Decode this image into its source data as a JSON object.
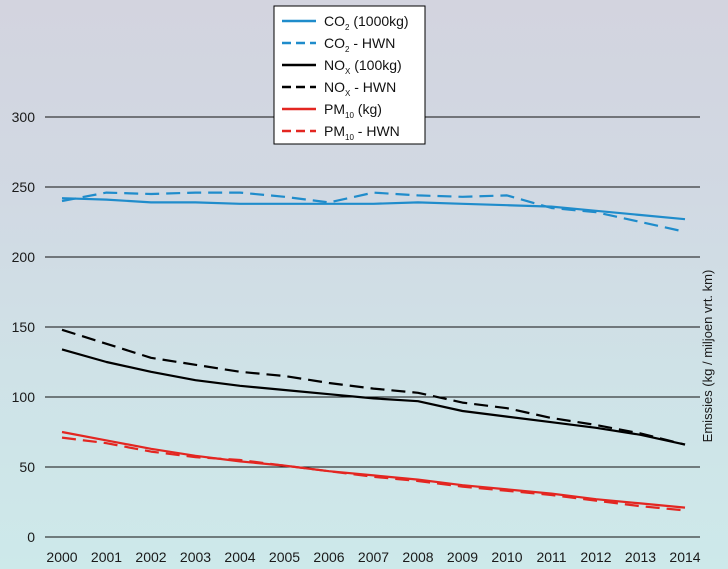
{
  "chart_data": {
    "type": "line",
    "ylabel": "Emissies (kg / miljoen vrt. km)",
    "ylim": [
      0,
      300
    ],
    "yticks": [
      0,
      50,
      100,
      150,
      200,
      250,
      300
    ],
    "x": [
      "2000",
      "2001",
      "2002",
      "2003",
      "2004",
      "2005",
      "2006",
      "2007",
      "2008",
      "2009",
      "2010",
      "2011",
      "2012",
      "2013",
      "2014"
    ],
    "grid": "horizontal",
    "legend_position": "top-center",
    "series": [
      {
        "name": "CO2 (1000kg)",
        "legend_main": "CO",
        "legend_sub": "2",
        "legend_rest": " (1000kg)",
        "color": "#1f8ccb",
        "dash": "solid",
        "values": [
          242,
          241,
          239,
          239,
          238,
          238,
          238,
          238,
          239,
          238,
          237,
          236,
          233,
          230,
          227
        ]
      },
      {
        "name": "CO2 - HWN",
        "legend_main": "CO",
        "legend_sub": "2",
        "legend_rest": " - HWN",
        "color": "#1f8ccb",
        "dash": "dashed",
        "values": [
          240,
          246,
          245,
          246,
          246,
          243,
          239,
          246,
          244,
          243,
          244,
          235,
          232,
          225,
          218
        ]
      },
      {
        "name": "NOx (100kg)",
        "legend_main": "NO",
        "legend_sub": "X",
        "legend_rest": " (100kg)",
        "color": "#000000",
        "dash": "solid",
        "values": [
          134,
          125,
          118,
          112,
          108,
          105,
          102,
          99,
          97,
          90,
          86,
          82,
          78,
          73,
          66
        ]
      },
      {
        "name": "NOx - HWN",
        "legend_main": "NO",
        "legend_sub": "X",
        "legend_rest": " - HWN",
        "color": "#000000",
        "dash": "dashed",
        "values": [
          148,
          138,
          128,
          123,
          118,
          115,
          110,
          106,
          103,
          96,
          92,
          85,
          80,
          74,
          66
        ]
      },
      {
        "name": "PM10 (kg)",
        "legend_main": "PM",
        "legend_sub": "10",
        "legend_rest": " (kg)",
        "color": "#e32621",
        "dash": "solid",
        "values": [
          75,
          69,
          63,
          58,
          54,
          51,
          47,
          44,
          41,
          37,
          34,
          31,
          27,
          24,
          21
        ]
      },
      {
        "name": "PM10 - HWN",
        "legend_main": "PM",
        "legend_sub": "10",
        "legend_rest": " - HWN",
        "color": "#e32621",
        "dash": "dashed",
        "values": [
          71,
          67,
          61,
          57,
          55,
          51,
          47,
          43,
          40,
          36,
          33,
          30,
          26,
          22,
          19
        ]
      }
    ]
  }
}
